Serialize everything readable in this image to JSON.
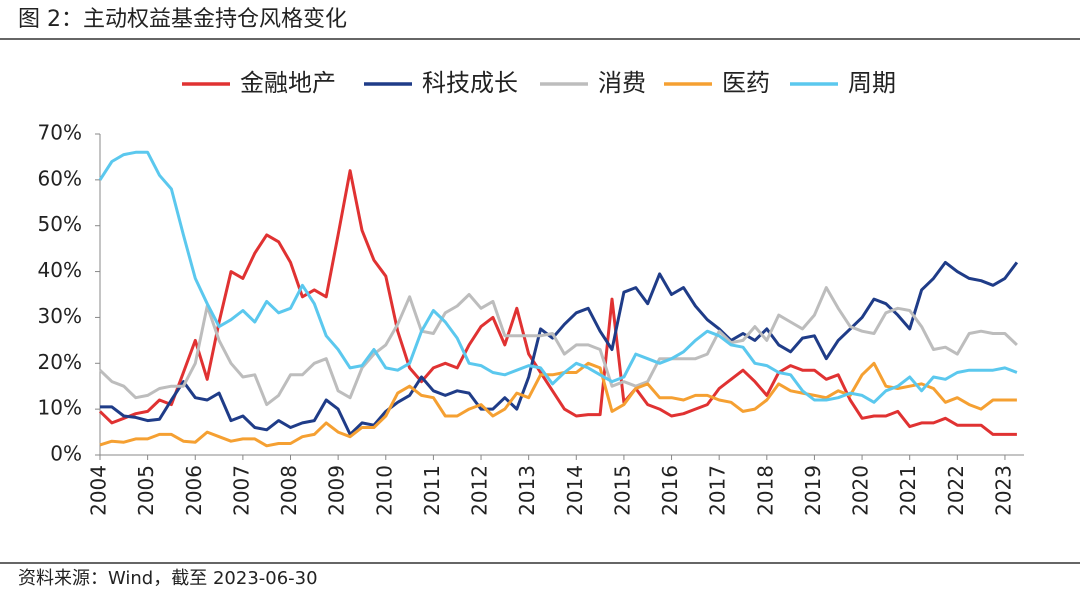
{
  "header": {
    "title": "图 2：主动权益基金持仓风格变化"
  },
  "footer": {
    "source": "资料来源：Wind，截至 2023-06-30"
  },
  "chart_data": {
    "type": "line",
    "x": [
      2004,
      2004.25,
      2004.5,
      2004.75,
      2005,
      2005.25,
      2005.5,
      2005.75,
      2006,
      2006.25,
      2006.5,
      2006.75,
      2007,
      2007.25,
      2007.5,
      2007.75,
      2008,
      2008.25,
      2008.5,
      2008.75,
      2009,
      2009.25,
      2009.5,
      2009.75,
      2010,
      2010.25,
      2010.5,
      2010.75,
      2011,
      2011.25,
      2011.5,
      2011.75,
      2012,
      2012.25,
      2012.5,
      2012.75,
      2013,
      2013.25,
      2013.5,
      2013.75,
      2014,
      2014.25,
      2014.5,
      2014.75,
      2015,
      2015.25,
      2015.5,
      2015.75,
      2016,
      2016.25,
      2016.5,
      2016.75,
      2017,
      2017.25,
      2017.5,
      2017.75,
      2018,
      2018.25,
      2018.5,
      2018.75,
      2019,
      2019.25,
      2019.5,
      2019.75,
      2020,
      2020.25,
      2020.5,
      2020.75,
      2021,
      2021.25,
      2021.5,
      2021.75,
      2022,
      2022.25,
      2022.5,
      2022.75,
      2023,
      2023.25
    ],
    "series": [
      {
        "name": "金融地产",
        "color": "#e03232",
        "values": [
          9.5,
          7,
          8,
          9,
          9.5,
          12,
          11,
          18,
          25,
          16.5,
          29,
          40,
          38.5,
          44,
          48,
          46.5,
          42,
          34.5,
          36,
          34.5,
          48,
          62,
          49,
          42.5,
          39,
          27,
          19,
          16,
          19,
          20,
          19,
          24,
          28,
          30,
          24,
          32,
          22,
          18,
          14,
          10,
          8.5,
          8.8,
          8.8,
          34,
          11.5,
          14.5,
          11,
          10,
          8.5,
          9,
          10,
          11,
          14.5,
          16.5,
          18.5,
          16,
          13,
          18,
          19.5,
          18.5,
          18.5,
          16.5,
          17.5,
          12,
          8,
          8.5,
          8.5,
          9.5,
          6.2,
          7,
          7,
          8,
          6.5,
          6.5,
          6.5,
          4.5,
          4.5,
          4.5
        ]
      },
      {
        "name": "科技成长",
        "color": "#1f3c88",
        "values": [
          10.5,
          10.5,
          8.5,
          8.2,
          7.5,
          7.8,
          12,
          16,
          12.5,
          12,
          13.5,
          7.5,
          8.5,
          6,
          5.5,
          7.5,
          6,
          7,
          7.5,
          12,
          10,
          4.5,
          7,
          6.5,
          9.5,
          11.5,
          13,
          17,
          14,
          13,
          14,
          13.5,
          10,
          10,
          12.5,
          10,
          17,
          27.5,
          25.5,
          28.5,
          31,
          32,
          27,
          23,
          35.5,
          36.5,
          33,
          39.5,
          35,
          36.5,
          32.5,
          29.5,
          27.5,
          25,
          26.5,
          25,
          27.5,
          24,
          22.5,
          25.5,
          26,
          21,
          25,
          27.5,
          30,
          34,
          33,
          30.5,
          27.5,
          36,
          38.5,
          42,
          40,
          38.5,
          38,
          37,
          38.5,
          42
        ]
      },
      {
        "name": "消费",
        "color": "#bdbdbd",
        "values": [
          18.5,
          16,
          15,
          12.5,
          13,
          14.5,
          15,
          15,
          20,
          32.5,
          25,
          20,
          17,
          17.5,
          11,
          13,
          17.5,
          17.5,
          20,
          21,
          14,
          12.5,
          19,
          22,
          24,
          28.5,
          34.5,
          27,
          26.5,
          31,
          32.5,
          35,
          32,
          33.5,
          26,
          26,
          26,
          26,
          26.5,
          22,
          24,
          24,
          23,
          15,
          16,
          15,
          16,
          21,
          21,
          21,
          21,
          22,
          27,
          24.5,
          25,
          28,
          25,
          30.5,
          29,
          27.5,
          30.5,
          36.5,
          32,
          28,
          27,
          26.5,
          31,
          32,
          31.5,
          28,
          23,
          23.5,
          22,
          26.5,
          27,
          26.5,
          26.5,
          24
        ]
      },
      {
        "name": "医药",
        "color": "#f5a032",
        "values": [
          2.2,
          3,
          2.8,
          3.5,
          3.5,
          4.5,
          4.5,
          3,
          2.8,
          5,
          4,
          3,
          3.5,
          3.5,
          2,
          2.5,
          2.5,
          4,
          4.5,
          7,
          5,
          4,
          6,
          6,
          8.5,
          13.5,
          15,
          13,
          12.5,
          8.5,
          8.5,
          10,
          11,
          8.5,
          10,
          13.5,
          12.5,
          17.5,
          17.5,
          18,
          18,
          20,
          19,
          9.5,
          11,
          14.5,
          15.5,
          12.5,
          12.5,
          12,
          13,
          13,
          12,
          11.5,
          9.5,
          10,
          12,
          15.5,
          14,
          13.5,
          13,
          12.5,
          14,
          13,
          17.5,
          20,
          15,
          14.5,
          15,
          15.5,
          14.5,
          11.5,
          12.5,
          11,
          10,
          12,
          12,
          12
        ]
      },
      {
        "name": "周期",
        "color": "#5bc8ee",
        "values": [
          60,
          64,
          65.5,
          66,
          66,
          61,
          58,
          48,
          38.5,
          33,
          28,
          29.5,
          31.5,
          29,
          33.5,
          31,
          32,
          37,
          33,
          26,
          23,
          19,
          19.5,
          23,
          19,
          18.5,
          20,
          27,
          31.5,
          29,
          25.5,
          20,
          19.5,
          18,
          17.5,
          18.5,
          19.5,
          19,
          15.5,
          18,
          20,
          19,
          17.5,
          16,
          17,
          22,
          21,
          20,
          21,
          22.5,
          25,
          27,
          26,
          24,
          23.5,
          20,
          19.5,
          18,
          17.5,
          14,
          12,
          12,
          12.5,
          13.5,
          13,
          11.5,
          14,
          15,
          17,
          14,
          17,
          16.5,
          18,
          18.5,
          18.5,
          18.5,
          19,
          18
        ]
      }
    ],
    "xlim": [
      2004,
      2023.4
    ],
    "xticks": [
      2004,
      2005,
      2006,
      2007,
      2008,
      2009,
      2010,
      2011,
      2012,
      2013,
      2014,
      2015,
      2016,
      2017,
      2018,
      2019,
      2020,
      2021,
      2022,
      2023
    ],
    "ylim": [
      0,
      70
    ],
    "yticks": [
      {
        "value": 0,
        "label": "0%"
      },
      {
        "value": 10,
        "label": "10%"
      },
      {
        "value": 20,
        "label": "20%"
      },
      {
        "value": 30,
        "label": "30%"
      },
      {
        "value": 40,
        "label": "40%"
      },
      {
        "value": 50,
        "label": "50%"
      },
      {
        "value": 60,
        "label": "60%"
      },
      {
        "value": 70,
        "label": "70%"
      }
    ],
    "legend": "top"
  }
}
